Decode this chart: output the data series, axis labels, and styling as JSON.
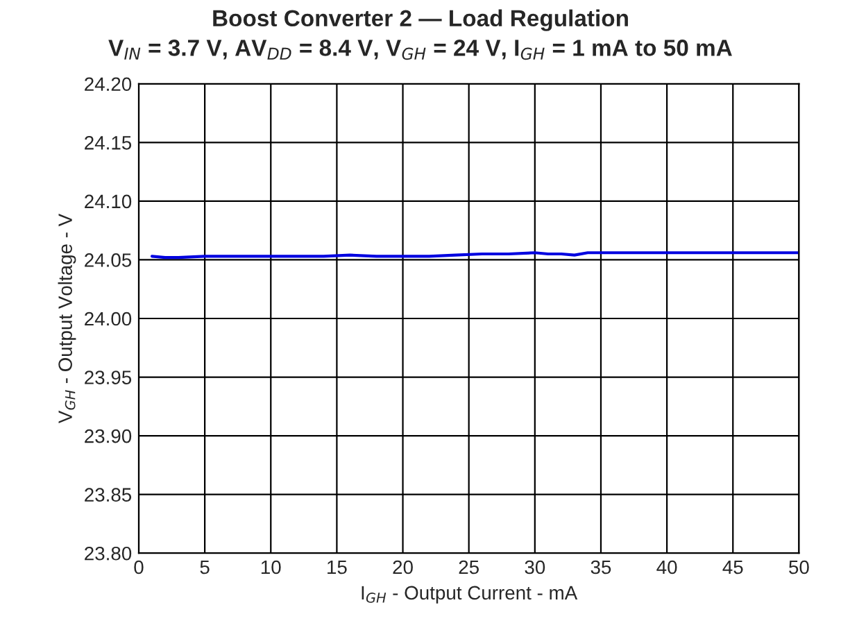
{
  "chart_data": {
    "type": "line",
    "title": "Boost Converter 2 — Load Regulation",
    "subtitle": "V$_{IN}$ = 3.7 V, AV$_{DD}$ = 8.4 V, V$_{GH}$ = 24 V, I$_{GH}$ = 1 mA to 50 mA",
    "xlabel": "I$_{GH}$ - Output Current - mA",
    "ylabel": "V$_{GH}$ - Output Voltage - V",
    "x": [
      1,
      2,
      3,
      5,
      8,
      10,
      12,
      14,
      16,
      18,
      20,
      22,
      24,
      26,
      28,
      30,
      31,
      32,
      33,
      34,
      35,
      38,
      40,
      42,
      44,
      46,
      48,
      50
    ],
    "series": [
      {
        "color": "#0000e0",
        "values": [
          24.053,
          24.052,
          24.052,
          24.053,
          24.053,
          24.053,
          24.053,
          24.053,
          24.054,
          24.053,
          24.053,
          24.053,
          24.054,
          24.055,
          24.055,
          24.056,
          24.055,
          24.055,
          24.054,
          24.056,
          24.056,
          24.056,
          24.056,
          24.056,
          24.056,
          24.056,
          24.056,
          24.056
        ]
      }
    ],
    "xlim": [
      0,
      50
    ],
    "ylim": [
      23.8,
      24.2
    ],
    "xticks": [
      0,
      5,
      10,
      15,
      20,
      25,
      30,
      35,
      40,
      45,
      50
    ],
    "yticks": [
      {
        "value": 23.8,
        "label": "23.80"
      },
      {
        "value": 23.85,
        "label": "23.85"
      },
      {
        "value": 23.9,
        "label": "23.90"
      },
      {
        "value": 23.95,
        "label": "23.95"
      },
      {
        "value": 24.0,
        "label": "24.00"
      },
      {
        "value": 24.05,
        "label": "24.05"
      },
      {
        "value": 24.1,
        "label": "24.10"
      },
      {
        "value": 24.15,
        "label": "24.15"
      },
      {
        "value": 24.2,
        "label": "24.20"
      }
    ],
    "grid": true,
    "marker": "none",
    "line_style": "solid"
  }
}
